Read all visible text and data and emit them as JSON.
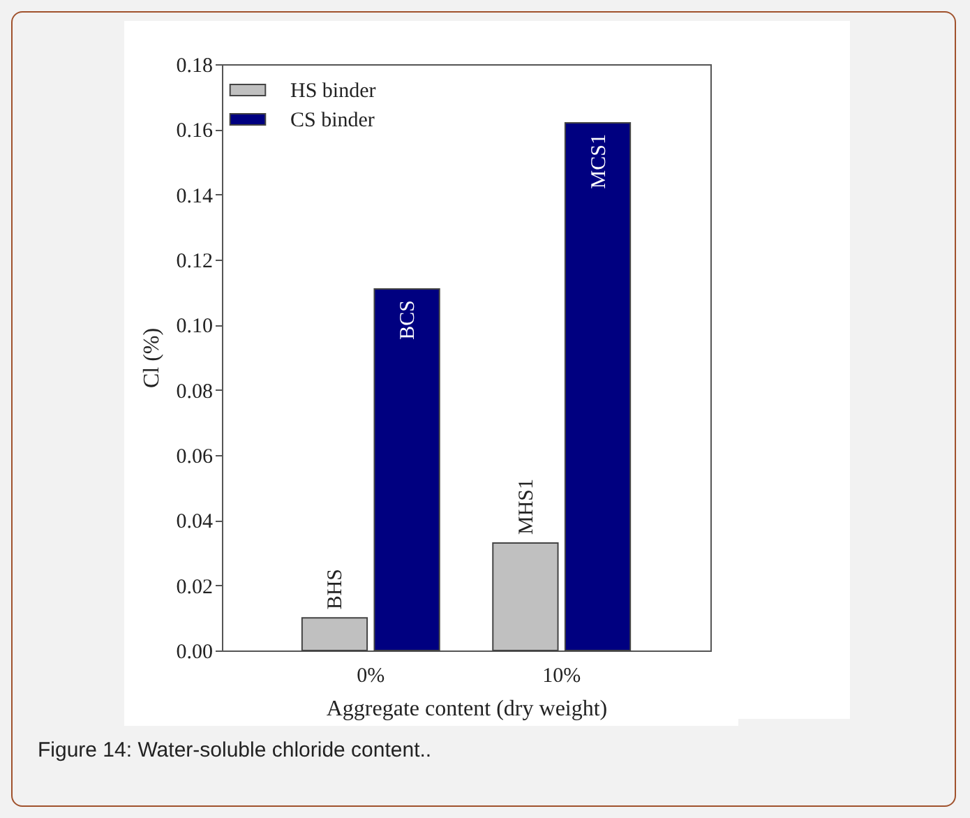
{
  "chart_data": {
    "type": "bar",
    "xlabel": "Aggregate content (dry weight)",
    "ylabel": "Cl (%)",
    "categories": [
      "0%",
      "10%"
    ],
    "series": [
      {
        "name": "HS binder",
        "color": "#c0c0c0",
        "values": [
          0.01,
          0.033
        ]
      },
      {
        "name": "CS binder",
        "color": "#000080",
        "values": [
          0.111,
          0.162
        ]
      }
    ],
    "ylim": [
      0,
      0.18
    ],
    "yticks": [
      {
        "value": 0,
        "label": "0.00"
      },
      {
        "value": 0.02,
        "label": "0.02"
      },
      {
        "value": 0.04,
        "label": "0.04"
      },
      {
        "value": 0.06,
        "label": "0.06"
      },
      {
        "value": 0.08,
        "label": "0.08"
      },
      {
        "value": 0.1,
        "label": "0.10"
      },
      {
        "value": 0.12,
        "label": "0.12"
      },
      {
        "value": 0.14,
        "label": "0.14"
      },
      {
        "value": 0.16,
        "label": "0.16"
      },
      {
        "value": 0.18,
        "label": "0.18"
      }
    ],
    "grid": false,
    "legend": "top left",
    "annotations": [
      {
        "text": "BHS",
        "x": "0%",
        "y": 0.01
      },
      {
        "text": "BCS",
        "x": "0%",
        "y": 0.111
      },
      {
        "text": "MHS1",
        "x": "10%",
        "y": 0.033
      },
      {
        "text": "MCS1",
        "x": "10%",
        "y": 0.162
      },
      "Figure 14: Water-soluble chloride content.."
    ]
  }
}
